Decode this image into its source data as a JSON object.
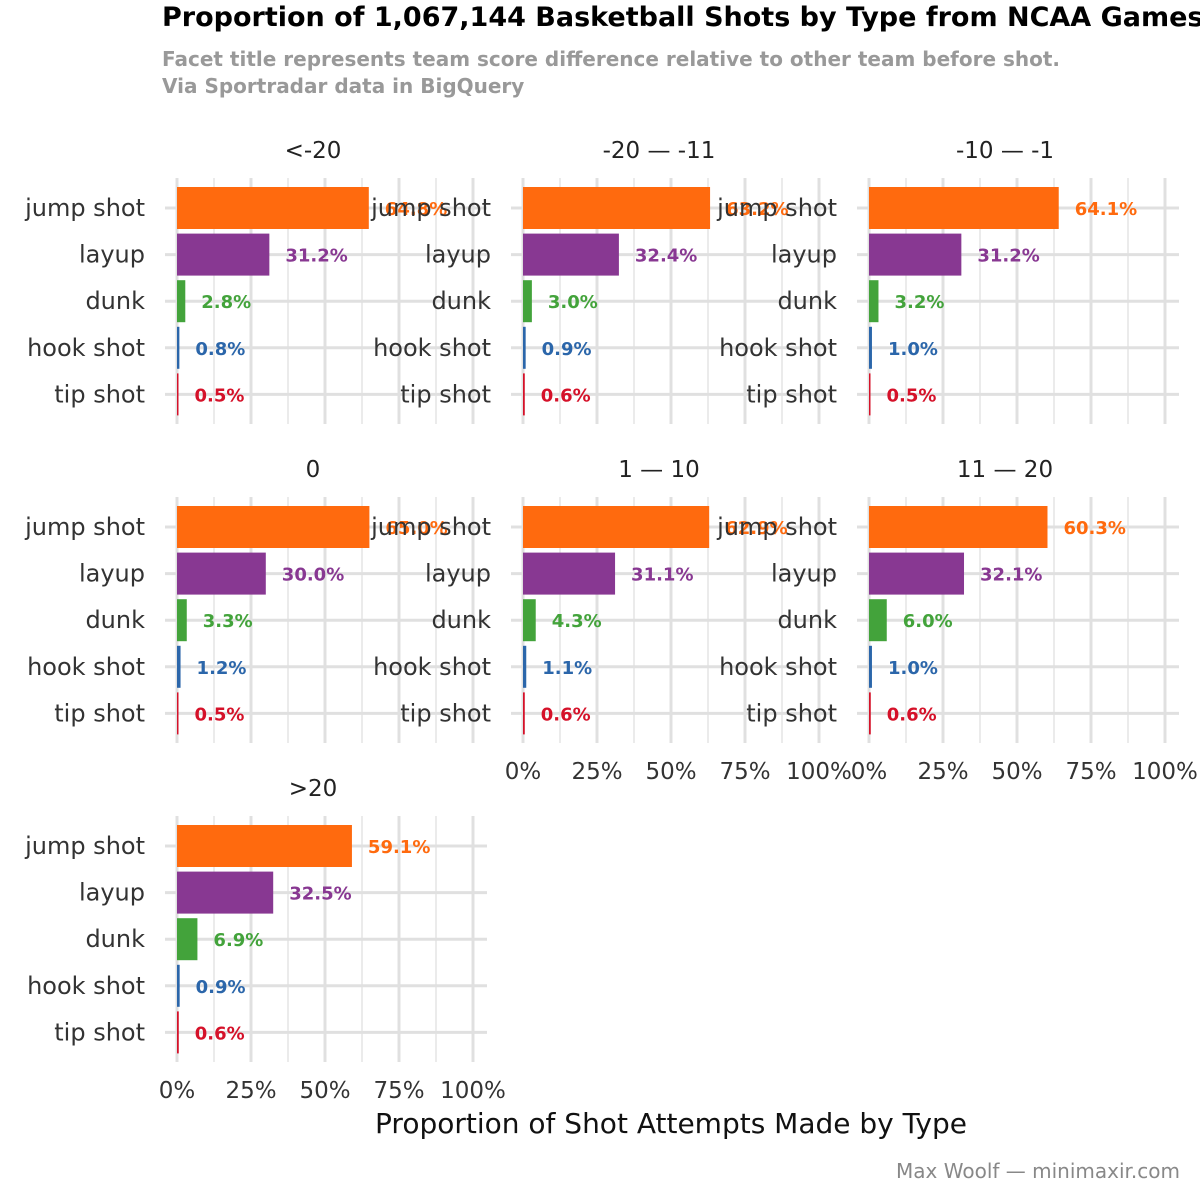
{
  "title": "Proportion of 1,067,144 Basketball Shots by Type from NCAA Games",
  "subtitle_lines": [
    "Facet title represents team score difference relative to other team before shot.",
    "Via Sportradar data in BigQuery"
  ],
  "caption": "Max Woolf — minimaxir.com",
  "chart_data": {
    "type": "bar",
    "orientation": "horizontal",
    "facet_by": "team score difference before shot",
    "categories": [
      "jump shot",
      "layup",
      "dunk",
      "hook shot",
      "tip shot"
    ],
    "colors": {
      "jump shot": "#FF6A0E",
      "layup": "#883892",
      "dunk": "#43A33B",
      "hook shot": "#2B66AA",
      "tip shot": "#D51129"
    },
    "xlabel": "Proportion of Shot Attempts Made by Type",
    "ylabel": "",
    "xlim": [
      0,
      1
    ],
    "x_ticks": [
      0,
      0.25,
      0.5,
      0.75,
      1.0
    ],
    "x_tick_labels": [
      "0%",
      "25%",
      "50%",
      "75%",
      "100%"
    ],
    "grid": true,
    "legend": "none",
    "facets": [
      {
        "label": "<-20",
        "values": [
          0.648,
          0.312,
          0.028,
          0.008,
          0.005
        ],
        "value_labels": [
          "64.8%",
          "31.2%",
          "2.8%",
          "0.8%",
          "0.5%"
        ]
      },
      {
        "label": "-20 — -11",
        "values": [
          0.632,
          0.324,
          0.03,
          0.009,
          0.006
        ],
        "value_labels": [
          "63.2%",
          "32.4%",
          "3.0%",
          "0.9%",
          "0.6%"
        ]
      },
      {
        "label": "-10 — -1",
        "values": [
          0.641,
          0.312,
          0.032,
          0.01,
          0.005
        ],
        "value_labels": [
          "64.1%",
          "31.2%",
          "3.2%",
          "1.0%",
          "0.5%"
        ]
      },
      {
        "label": "0",
        "values": [
          0.65,
          0.3,
          0.033,
          0.012,
          0.005
        ],
        "value_labels": [
          "65.0%",
          "30.0%",
          "3.3%",
          "1.2%",
          "0.5%"
        ]
      },
      {
        "label": "1 — 10",
        "values": [
          0.629,
          0.311,
          0.043,
          0.011,
          0.006
        ],
        "value_labels": [
          "62.9%",
          "31.1%",
          "4.3%",
          "1.1%",
          "0.6%"
        ]
      },
      {
        "label": "11 — 20",
        "values": [
          0.603,
          0.321,
          0.06,
          0.01,
          0.006
        ],
        "value_labels": [
          "60.3%",
          "32.1%",
          "6.0%",
          "1.0%",
          "0.6%"
        ]
      },
      {
        "label": ">20",
        "values": [
          0.591,
          0.325,
          0.069,
          0.009,
          0.006
        ],
        "value_labels": [
          "59.1%",
          "32.5%",
          "6.9%",
          "0.9%",
          "0.6%"
        ]
      }
    ]
  }
}
